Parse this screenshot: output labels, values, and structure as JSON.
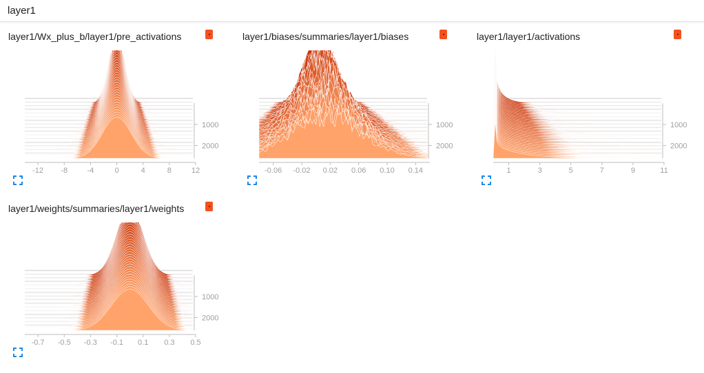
{
  "section": {
    "title": "layer1"
  },
  "colors": {
    "ridge_front": "#ffa36b",
    "ridge_back": "#c62c00",
    "ridge_stroke": "#ffffff",
    "axis": "#bdbdbd",
    "run_chip": "#f4511e",
    "expand_icon": "#1e88e5"
  },
  "cards": [
    {
      "title": "layer1/Wx_plus_b/layer1/pre_activations",
      "run_chip_icon": "run-color-chip-icon",
      "expand_icon": "expand-icon",
      "chart_data": {
        "type": "area",
        "subtype": "histogram-offset",
        "xlim": [
          -14,
          12
        ],
        "x_ticks": [
          -12,
          -8,
          -4,
          0,
          4,
          8,
          12
        ],
        "x_tick_labels": [
          "-12",
          "-8",
          "-4",
          "0",
          "4",
          "8",
          "12"
        ],
        "step_ticks": [
          1000,
          2000
        ],
        "step_tick_labels": [
          "1000",
          "2000"
        ],
        "step_range": [
          0,
          2600
        ],
        "distribution": {
          "shape": "gaussian",
          "center": 0,
          "spread_start": 1.2,
          "spread_end": 2.2,
          "skew": 0
        },
        "peak_max": 1.0
      }
    },
    {
      "title": "layer1/biases/summaries/layer1/biases",
      "run_chip_icon": "run-color-chip-icon",
      "expand_icon": "expand-icon",
      "chart_data": {
        "type": "area",
        "subtype": "histogram-offset",
        "xlim": [
          -0.08,
          0.16
        ],
        "x_ticks": [
          -0.06,
          -0.02,
          0.02,
          0.06,
          0.1,
          0.14
        ],
        "x_tick_labels": [
          "-0.06",
          "-0.02",
          "0.02",
          "0.06",
          "0.10",
          "0.14"
        ],
        "step_ticks": [
          1000,
          2000
        ],
        "step_tick_labels": [
          "1000",
          "2000"
        ],
        "step_range": [
          0,
          2600
        ],
        "distribution": {
          "shape": "noisy",
          "center": 0.01,
          "spread_start": 0.02,
          "spread_end": 0.05,
          "skew": 0.01
        },
        "peak_max": 1.0
      }
    },
    {
      "title": "layer1/layer1/activations",
      "run_chip_icon": "run-color-chip-icon",
      "expand_icon": "expand-icon",
      "chart_data": {
        "type": "area",
        "subtype": "histogram-offset",
        "xlim": [
          0,
          11
        ],
        "x_ticks": [
          1,
          3,
          5,
          7,
          9,
          11
        ],
        "x_tick_labels": [
          "1",
          "3",
          "5",
          "7",
          "9",
          "11"
        ],
        "step_ticks": [
          1000,
          2000
        ],
        "step_tick_labels": [
          "1000",
          "2000"
        ],
        "step_range": [
          0,
          2600
        ],
        "distribution": {
          "shape": "spike-decay",
          "center": 0,
          "spread_start": 0.6,
          "spread_end": 1.6,
          "skew": 0
        },
        "peak_max": 1.0
      }
    },
    {
      "title": "layer1/weights/summaries/layer1/weights",
      "run_chip_icon": "run-color-chip-icon",
      "expand_icon": "expand-icon",
      "chart_data": {
        "type": "area",
        "subtype": "histogram-offset",
        "xlim": [
          -0.8,
          0.5
        ],
        "x_ticks": [
          -0.7,
          -0.5,
          -0.3,
          -0.1,
          0.1,
          0.3,
          0.5
        ],
        "x_tick_labels": [
          "-0.7",
          "-0.5",
          "-0.3",
          "-0.1",
          "0.1",
          "0.3",
          "0.5"
        ],
        "step_ticks": [
          1000,
          2000
        ],
        "step_tick_labels": [
          "1000",
          "2000"
        ],
        "step_range": [
          0,
          2600
        ],
        "distribution": {
          "shape": "gaussian-wide",
          "center": 0,
          "spread_start": 0.1,
          "spread_end": 0.14,
          "skew": 0
        },
        "peak_max": 1.0
      }
    }
  ]
}
